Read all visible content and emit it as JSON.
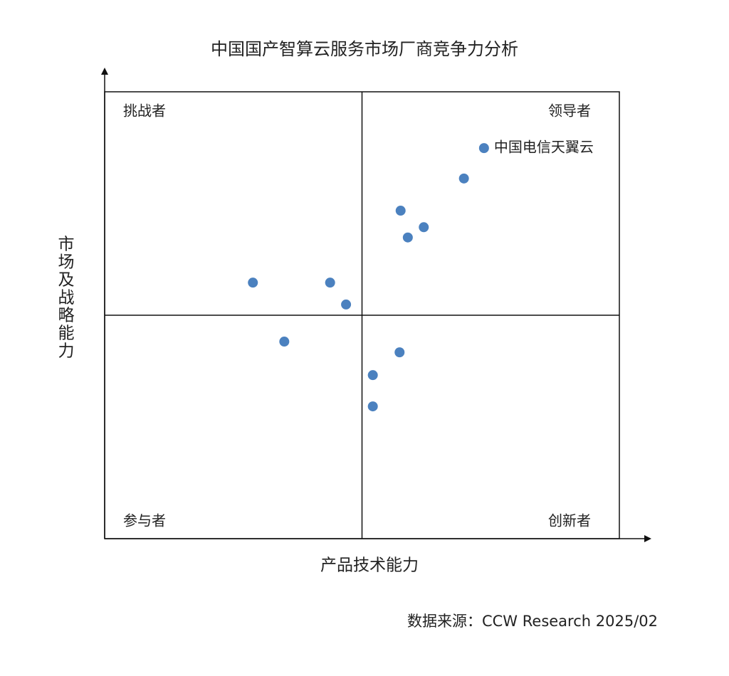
{
  "chart_data": {
    "type": "scatter",
    "title": "中国国产智算云服务市场厂商竞争力分析",
    "x_label": "产品技术能力",
    "y_label": "市场及战略能力",
    "quadrant_labels": {
      "top_left": "挑战者",
      "top_right": "领导者",
      "bottom_left": "参与者",
      "bottom_right": "创新者"
    },
    "source": "数据来源：CCW Research 2025/02",
    "xlim": [
      0,
      10
    ],
    "ylim": [
      0,
      10
    ],
    "color": "#4b81bf",
    "x": [
      7.37,
      6.98,
      5.75,
      6.2,
      5.89,
      2.88,
      4.38,
      4.69,
      3.49,
      5.73,
      5.21,
      5.21
    ],
    "y": [
      8.74,
      8.06,
      7.34,
      6.97,
      6.74,
      5.73,
      5.73,
      5.24,
      4.41,
      4.17,
      3.66,
      2.96
    ],
    "point_labels": [
      "中国电信天翼云",
      null,
      null,
      null,
      null,
      null,
      null,
      null,
      null,
      null,
      null,
      null
    ]
  }
}
